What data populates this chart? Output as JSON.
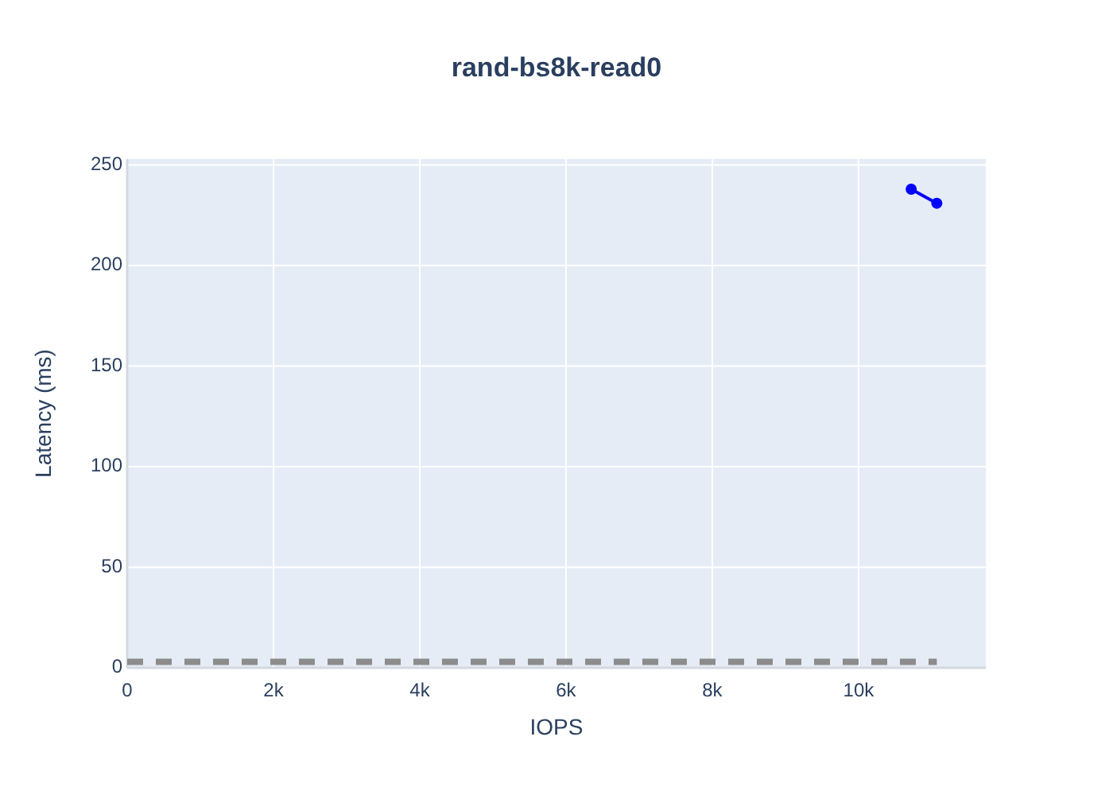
{
  "chart_data": {
    "type": "line",
    "title": "rand-bs8k-read0",
    "xlabel": "IOPS",
    "ylabel": "Latency (ms)",
    "xlim": [
      0,
      11740
    ],
    "ylim": [
      0,
      253
    ],
    "xticks": [
      0,
      {
        "value": 2000,
        "label": "2k"
      },
      {
        "value": 4000,
        "label": "4k"
      },
      {
        "value": 6000,
        "label": "6k"
      },
      {
        "value": 8000,
        "label": "8k"
      },
      {
        "value": 10000,
        "label": "10k"
      }
    ],
    "yticks": [
      0,
      50,
      100,
      150,
      200,
      250
    ],
    "grid": true,
    "series": [
      {
        "x": [
          10720,
          11070
        ],
        "values": [
          238,
          231
        ],
        "color": "#0000ff",
        "marker": "circle",
        "line_style": "solid"
      },
      {
        "x": [
          0,
          11070
        ],
        "values": [
          3,
          3
        ],
        "color": "#8c8c8c",
        "marker": "none",
        "line_style": "dashed"
      }
    ]
  }
}
